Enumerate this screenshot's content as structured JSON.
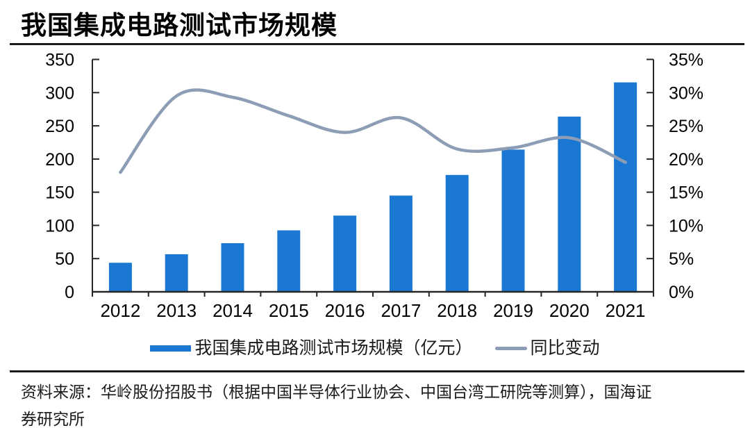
{
  "title": "我国集成电路测试市场规模",
  "legend": {
    "bar_label": "我国集成电路测试市场规模（亿元）",
    "line_label": "同比变动"
  },
  "source": {
    "line1": "资料来源：华岭股份招股书（根据中国半导体行业协会、中国台湾工研院等测算），国海证",
    "line2": "券研究所"
  },
  "colors": {
    "bar": "#1B78D2",
    "line": "#8C9DB5",
    "axis": "#262626",
    "text": "#000000"
  },
  "chart_data": {
    "type": "bar",
    "subtype": "bar+line combo, dual axis",
    "title": "我国集成电路测试市场规模",
    "categories": [
      "2012",
      "2013",
      "2014",
      "2015",
      "2016",
      "2017",
      "2018",
      "2019",
      "2020",
      "2021"
    ],
    "series": [
      {
        "name": "我国集成电路测试市场规模（亿元）",
        "type": "bar",
        "axis": "left",
        "color": "#1B78D2",
        "values": [
          43.7,
          56.6,
          73.2,
          92.6,
          114.8,
          144.9,
          176.0,
          214.2,
          263.9,
          315.4
        ]
      },
      {
        "name": "同比变动",
        "type": "line",
        "axis": "right",
        "color": "#8C9DB5",
        "values": [
          18.0,
          29.5,
          29.3,
          26.5,
          24.0,
          26.2,
          21.5,
          21.7,
          23.2,
          19.5
        ]
      }
    ],
    "left_axis": {
      "min": 0,
      "max": 350,
      "ticks": [
        0,
        50,
        100,
        150,
        200,
        250,
        300,
        350
      ],
      "suffix": ""
    },
    "right_axis": {
      "min": 0,
      "max": 35,
      "ticks": [
        0,
        5,
        10,
        15,
        20,
        25,
        30,
        35
      ],
      "suffix": "%"
    },
    "grid": false,
    "legend_position": "bottom",
    "smooth_line": true
  }
}
